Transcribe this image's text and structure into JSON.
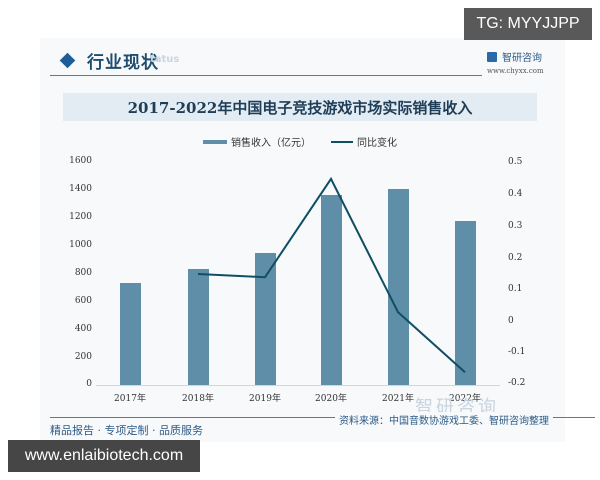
{
  "header": {
    "section_title": "行业现状",
    "section_subtitle": "tatus",
    "brand_name": "智研咨询",
    "brand_url": "www.chyxx.com"
  },
  "overlay": {
    "tg_label": "TG: MYYJJPP",
    "url_label": "www.enlaibiotech.com"
  },
  "footer": {
    "tagline": "精品报告 · 专项定制 · 品质服务",
    "source": "资料来源：中国音数协游戏工委、智研咨询整理",
    "watermark": "智研咨询"
  },
  "colors": {
    "bar": "#5f8fa8",
    "line": "#0f4e63",
    "accent": "#1d5f95",
    "title_band": "#e3ecf3"
  },
  "chart_data": {
    "type": "bar",
    "title": "2017-2022年中国电子竞技游戏市场实际销售收入",
    "categories": [
      "2017年",
      "2018年",
      "2019年",
      "2020年",
      "2021年",
      "2022年"
    ],
    "series": [
      {
        "name": "销售收入（亿元）",
        "type": "bar",
        "axis": "left",
        "values": [
          730,
          834,
          947,
          1365,
          1403,
          1179
        ]
      },
      {
        "name": "同比变化",
        "type": "line",
        "axis": "right",
        "values": [
          null,
          0.15,
          0.14,
          0.45,
          0.03,
          -0.16
        ]
      }
    ],
    "xlabel": "",
    "ylabel": "",
    "ylim": [
      0,
      1600
    ],
    "yticks": [
      "0",
      "200",
      "400",
      "600",
      "800",
      "1000",
      "1200",
      "1400",
      "1600"
    ],
    "y2lim": [
      -0.2,
      0.5
    ],
    "y2ticks": [
      "-0.2",
      "-0.1",
      "0",
      "0.1",
      "0.2",
      "0.3",
      "0.4",
      "0.5"
    ],
    "legend_position": "top",
    "grid": false
  }
}
